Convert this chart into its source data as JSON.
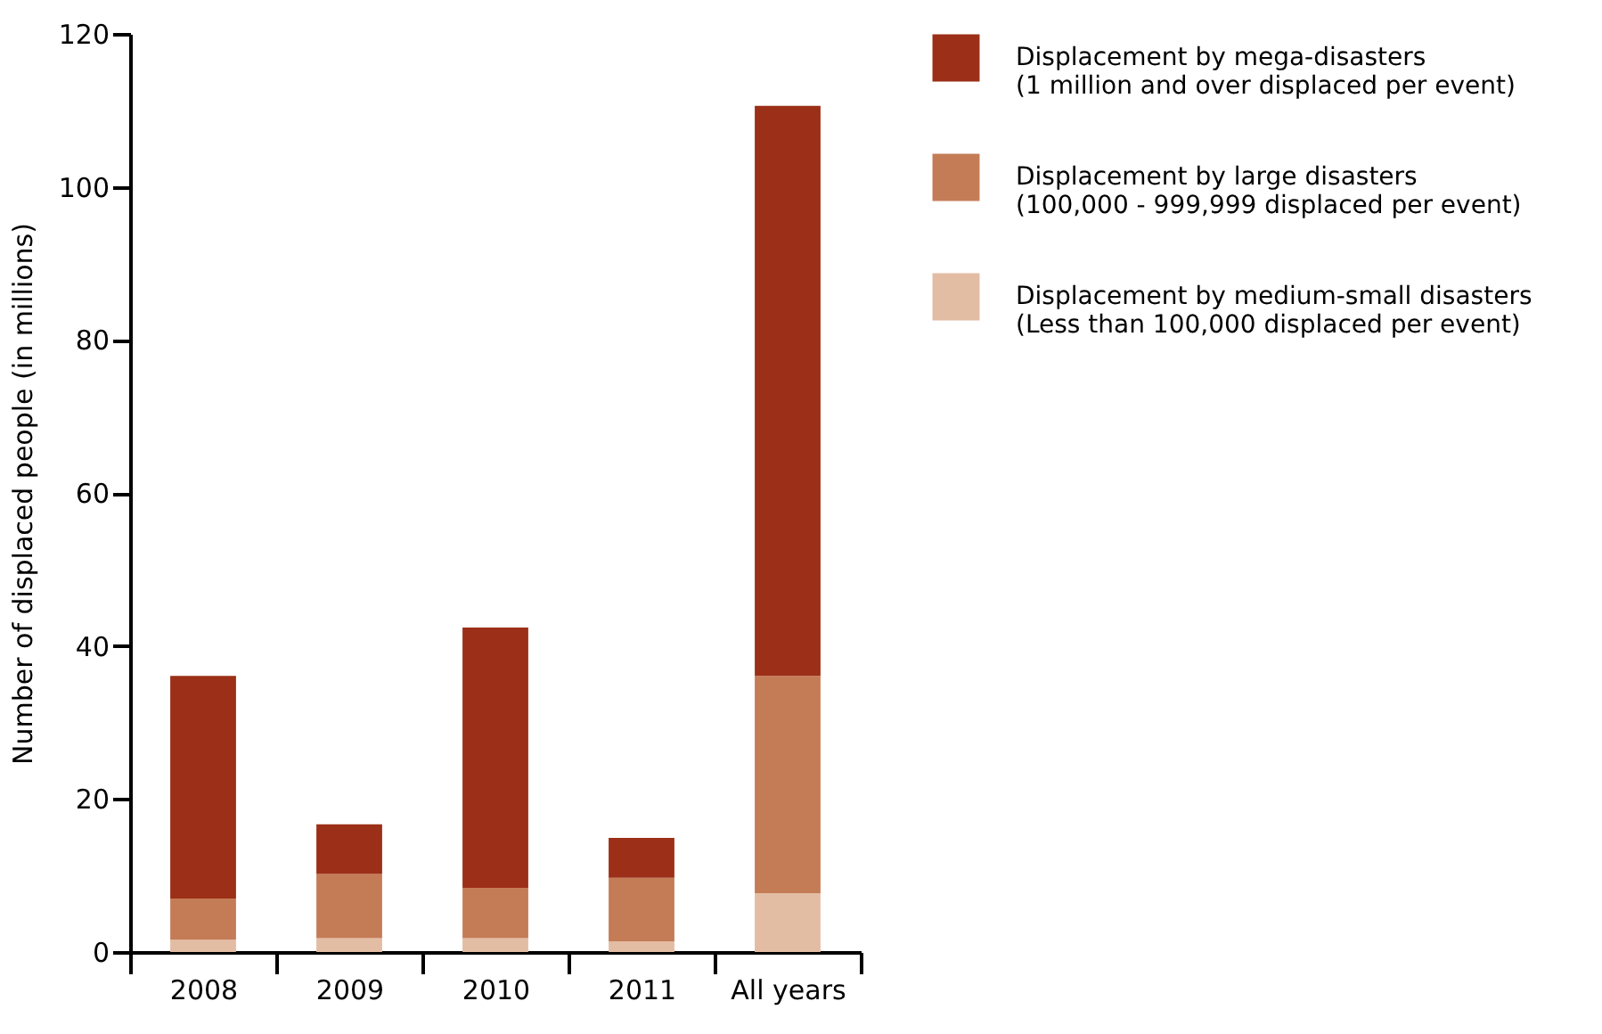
{
  "chart_data": {
    "type": "bar",
    "stacked": true,
    "ylabel": "Number of displaced people (in millions)",
    "categories": [
      "2008",
      "2009",
      "2010",
      "2011",
      "All years"
    ],
    "series": [
      {
        "name": "Displacement by medium-small disasters\n(Less than 100,000 displaced per event)",
        "color": "#e3bca4",
        "values": [
          1.6,
          1.8,
          1.8,
          1.4,
          7.7
        ]
      },
      {
        "name": "Displacement by large disasters\n(100,000 - 999,999 displaced per event)",
        "color": "#c47c56",
        "values": [
          5.4,
          8.4,
          6.6,
          8.3,
          28.4
        ]
      },
      {
        "name": "Displacement by mega-disasters\n(1 million and over displaced per event)",
        "color": "#9c2f17",
        "values": [
          29.1,
          6.5,
          34.0,
          5.2,
          74.5
        ]
      }
    ],
    "ylim": [
      0,
      120
    ],
    "yticks": [
      0,
      20,
      40,
      60,
      80,
      100,
      120
    ],
    "grid": false,
    "legend": "right"
  }
}
